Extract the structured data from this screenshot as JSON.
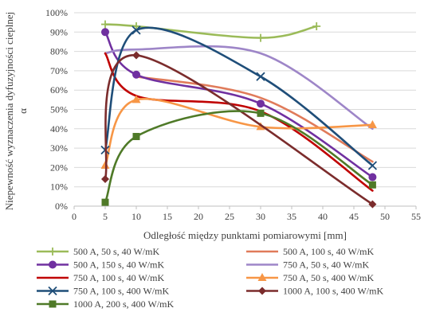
{
  "chart_data": {
    "type": "line",
    "title": "",
    "xlabel": "Odległość między punktami pomiarowymi [mm]",
    "ylabel": "Niepewność wyznaczenia dyfuzyjności cieplnej",
    "ylabel_symbol": "α",
    "xlim": [
      0,
      55
    ],
    "ylim": [
      0,
      100
    ],
    "x_ticks": [
      "0",
      "5",
      "10",
      "15",
      "20",
      "25",
      "30",
      "35",
      "40",
      "45",
      "50",
      "55"
    ],
    "y_ticks": [
      "0%",
      "10%",
      "20%",
      "30%",
      "40%",
      "50%",
      "60%",
      "70%",
      "80%",
      "90%",
      "100%"
    ],
    "grid": "horizontal",
    "legend_position": "bottom",
    "series": [
      {
        "name": "500 A, 50 s, 40 W/mK",
        "color": "#9bbb59",
        "marker": "plus",
        "x": [
          5,
          10,
          30,
          39
        ],
        "y": [
          94,
          93,
          87,
          93
        ]
      },
      {
        "name": "500 A, 100 s, 40 W/mK",
        "color": "#e07b5a",
        "marker": "none",
        "x": [
          10,
          30,
          48
        ],
        "y": [
          67,
          56,
          23
        ]
      },
      {
        "name": "500 A, 150 s, 40 W/mK",
        "color": "#7030a0",
        "marker": "circle",
        "x": [
          5,
          10,
          30,
          48
        ],
        "y": [
          90,
          68,
          53,
          15
        ]
      },
      {
        "name": "750 A, 50 s, 40 W/mK",
        "color": "#9e86c8",
        "marker": "none",
        "x": [
          5,
          10,
          30,
          48
        ],
        "y": [
          79,
          81,
          79,
          40
        ]
      },
      {
        "name": "750 A, 100 s, 40 W/mK",
        "color": "#c00000",
        "marker": "none",
        "x": [
          5,
          10,
          30,
          48
        ],
        "y": [
          79,
          57,
          49,
          8
        ]
      },
      {
        "name": "750 A, 50 s, 400 W/mK",
        "color": "#f79646",
        "marker": "triangle",
        "x": [
          5,
          10,
          30,
          48
        ],
        "y": [
          21,
          55,
          41,
          42
        ]
      },
      {
        "name": "750 A, 100 s, 400 W/mK",
        "color": "#1f4e79",
        "marker": "x",
        "x": [
          5,
          10,
          30,
          48
        ],
        "y": [
          29,
          91,
          67,
          21
        ]
      },
      {
        "name": "1000 A, 100 s, 400 W/mK",
        "color": "#7b2c2c",
        "marker": "diamond",
        "x": [
          5,
          10,
          48
        ],
        "y": [
          14,
          78,
          1
        ]
      },
      {
        "name": "1000 A, 200 s, 400 W/mK",
        "color": "#4f7a28",
        "marker": "square",
        "x": [
          5,
          10,
          30,
          48
        ],
        "y": [
          2,
          36,
          48,
          11
        ]
      }
    ]
  }
}
